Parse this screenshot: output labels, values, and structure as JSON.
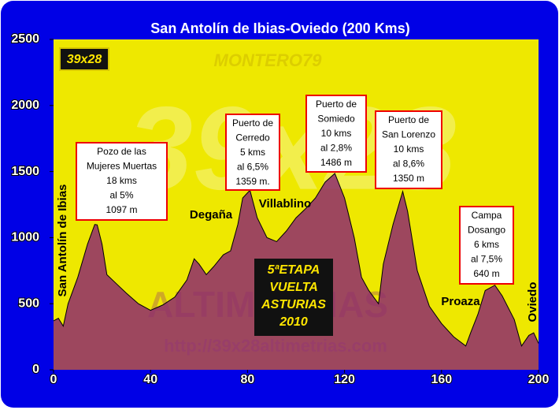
{
  "chart_data": {
    "type": "area",
    "title": "San Antolín de Ibias-Oviedo (200 Kms)",
    "x": [
      0,
      2,
      4,
      6,
      10,
      14,
      17,
      18,
      20,
      22,
      26,
      30,
      35,
      40,
      45,
      50,
      55,
      58,
      60,
      63,
      66,
      70,
      73,
      76,
      78,
      81,
      84,
      88,
      92,
      96,
      100,
      104,
      108,
      112,
      116,
      120,
      124,
      127,
      130,
      134,
      136,
      140,
      144,
      146,
      150,
      155,
      160,
      165,
      170,
      172,
      175,
      178,
      182,
      185,
      190,
      193,
      196,
      198,
      200
    ],
    "values": [
      370,
      390,
      330,
      500,
      700,
      950,
      1100,
      1097,
      950,
      720,
      650,
      580,
      500,
      450,
      490,
      550,
      680,
      840,
      800,
      720,
      780,
      870,
      900,
      1100,
      1300,
      1359,
      1150,
      1000,
      970,
      1050,
      1150,
      1220,
      1300,
      1420,
      1486,
      1300,
      1000,
      700,
      600,
      500,
      800,
      1100,
      1350,
      1200,
      750,
      480,
      350,
      250,
      180,
      280,
      420,
      600,
      640,
      560,
      380,
      180,
      260,
      280,
      200
    ],
    "color": "#8e2a6e",
    "xlim": [
      0,
      200
    ],
    "ylim": [
      0,
      2500
    ],
    "xticks": [
      0,
      40,
      80,
      120,
      160,
      200
    ],
    "yticks": [
      0,
      500,
      1000,
      1500,
      2000,
      2500
    ],
    "annotations": [
      {
        "lines": [
          "Pozo de las",
          "Mujeres Muertas",
          "18 kms",
          "al 5%",
          "1097 m"
        ]
      },
      {
        "lines": [
          "Puerto de",
          "Cerredo",
          "5 kms",
          "al 6,5%",
          "1359 m."
        ]
      },
      {
        "lines": [
          "Puerto de",
          "Somiedo",
          "10 kms",
          "al 2,8%",
          "1486 m"
        ]
      },
      {
        "lines": [
          "Puerto de",
          "San Lorenzo",
          "10 kms",
          "al 8,6%",
          "1350 m"
        ]
      },
      {
        "lines": [
          "Campa",
          "Dosango",
          "6 kms",
          "al 7,5%",
          "640 m"
        ]
      }
    ],
    "places": [
      "San Antolín de Ibias",
      "Degaña",
      "Villablino",
      "Proaza",
      "Oviedo"
    ],
    "badge": "39x28",
    "watermarks": [
      "MONTERO79",
      "39x28",
      "ALTIMETRIAS",
      "http://39x28altimetrias.com"
    ],
    "stage": [
      "5ªETAPA",
      "VUELTA",
      "ASTURIAS",
      "2010"
    ]
  }
}
